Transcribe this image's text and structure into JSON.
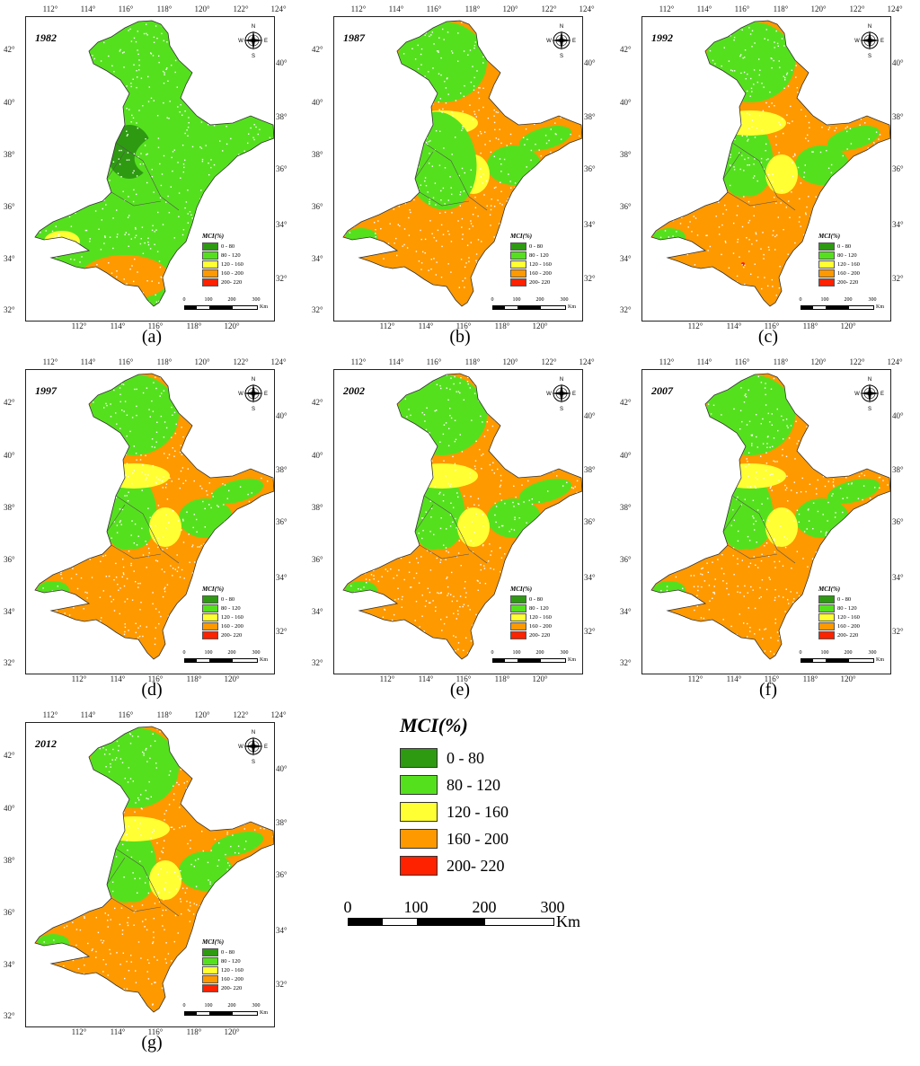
{
  "colors": {
    "0-80": "#2e9a12",
    "80-120": "#55e01e",
    "120-160": "#ffff33",
    "160-200": "#ff9900",
    "200-220": "#ff2200"
  },
  "legend": {
    "title": "MCI(%)",
    "classes": [
      {
        "label": "0 - 80",
        "color": "#2e9a12"
      },
      {
        "label": "80 - 120",
        "color": "#55e01e"
      },
      {
        "label": "120 - 160",
        "color": "#ffff33"
      },
      {
        "label": "160 - 200",
        "color": "#ff9900"
      },
      {
        "label": "200- 220",
        "color": "#ff2200"
      }
    ]
  },
  "scale_bar": {
    "labels": [
      "0",
      "100",
      "200",
      "300"
    ],
    "unit": "Km"
  },
  "compass": {
    "n": "N",
    "s": "S",
    "e": "E",
    "w": "W"
  },
  "axes": {
    "top_ticks": [
      "112°",
      "114°",
      "116°",
      "118°",
      "120°",
      "122°",
      "124°"
    ],
    "bottom_ticks": [
      "112°",
      "114°",
      "116°",
      "118°",
      "120°"
    ],
    "left_ticks": [
      "42°",
      "40°",
      "38°",
      "36°",
      "34°",
      "32°"
    ],
    "right_ticks": [
      "40°",
      "38°",
      "36°",
      "34°",
      "32°"
    ]
  },
  "panels": [
    {
      "label": "(a)",
      "year": "1982",
      "dominant": [
        "80-120",
        "0-80",
        "160-200"
      ]
    },
    {
      "label": "(b)",
      "year": "1987",
      "dominant": [
        "160-200",
        "80-120",
        "120-160"
      ]
    },
    {
      "label": "(c)",
      "year": "1992",
      "dominant": [
        "160-200",
        "120-160",
        "80-120"
      ]
    },
    {
      "label": "(d)",
      "year": "1997",
      "dominant": [
        "160-200",
        "120-160",
        "80-120"
      ]
    },
    {
      "label": "(e)",
      "year": "2002",
      "dominant": [
        "160-200",
        "120-160",
        "80-120"
      ]
    },
    {
      "label": "(f)",
      "year": "2007",
      "dominant": [
        "160-200",
        "120-160",
        "80-120"
      ]
    },
    {
      "label": "(g)",
      "year": "2012",
      "dominant": [
        "160-200",
        "120-160",
        "80-120"
      ]
    }
  ]
}
